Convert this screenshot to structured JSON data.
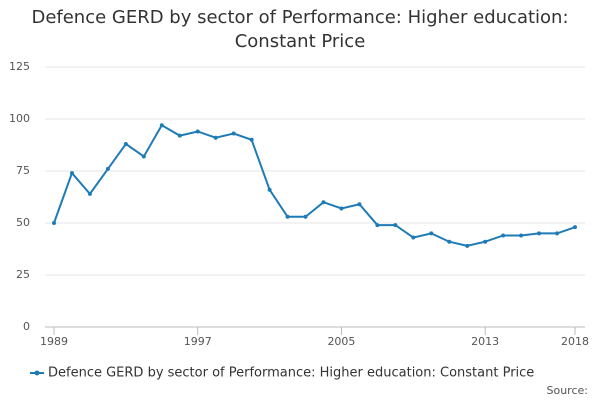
{
  "chart_data": {
    "type": "line",
    "title": "Defence GERD by sector of Performance: Higher education: Constant Price",
    "x": [
      1989,
      1990,
      1991,
      1992,
      1993,
      1994,
      1995,
      1996,
      1997,
      1998,
      1999,
      2000,
      2001,
      2002,
      2003,
      2004,
      2005,
      2006,
      2007,
      2008,
      2009,
      2010,
      2011,
      2012,
      2013,
      2014,
      2015,
      2016,
      2017,
      2018
    ],
    "series": [
      {
        "name": "Defence GERD by sector of Performance: Higher education: Constant Price",
        "color": "#1f7bb6",
        "values": [
          50,
          74,
          64,
          76,
          88,
          82,
          97,
          92,
          94,
          91,
          93,
          90,
          66,
          53,
          53,
          60,
          57,
          59,
          49,
          49,
          43,
          45,
          41,
          39,
          41,
          44,
          44,
          45,
          45,
          48
        ]
      }
    ],
    "xlim": [
      1989,
      2018
    ],
    "xticks": [
      1989,
      1997,
      2005,
      2013,
      2018
    ],
    "ylim": [
      0,
      125
    ],
    "yticks": [
      0,
      25,
      50,
      75,
      100,
      125
    ],
    "grid": true,
    "legend": "bottom",
    "source": "Source:"
  }
}
